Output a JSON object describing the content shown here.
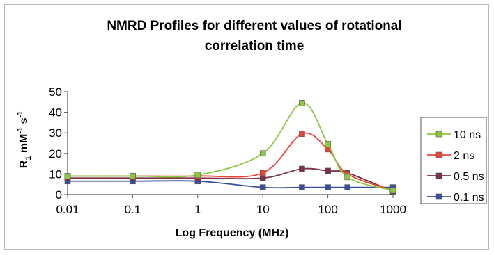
{
  "chart_data": {
    "type": "line",
    "title_lines": [
      "NMRD Profiles for different values of rotational",
      "correlation time"
    ],
    "xlabel": "Log Frequency (MHz)",
    "ylabel": {
      "base": "R",
      "sub": "1",
      "unit1": " mM",
      "sup1": "-1",
      "unit2": " s",
      "sup2": "-1"
    },
    "x_scale": "log",
    "xlim": [
      0.01,
      1000
    ],
    "ylim": [
      0,
      50
    ],
    "x_ticks": [
      0.01,
      0.1,
      1,
      10,
      100,
      1000
    ],
    "x_tick_labels": [
      "0.01",
      "0.1",
      "1",
      "10",
      "100",
      "1000"
    ],
    "y_ticks": [
      0,
      10,
      20,
      30,
      40,
      50
    ],
    "y_tick_labels": [
      "0",
      "10",
      "20",
      "30",
      "40",
      "50"
    ],
    "grid": false,
    "legend_position": "right",
    "x": [
      0.01,
      0.1,
      1,
      10,
      40,
      100,
      200,
      1000
    ],
    "series": [
      {
        "name": "10 ns",
        "color": "#8dc63f",
        "values": [
          9,
          9,
          9.5,
          20,
          44.5,
          24.5,
          8.5,
          2
        ]
      },
      {
        "name": "2 ns",
        "color": "#e8443a",
        "values": [
          9,
          9,
          9,
          10.5,
          29.5,
          22,
          10,
          2
        ]
      },
      {
        "name": "0.5 ns",
        "color": "#7b2f49",
        "values": [
          8,
          8,
          8,
          8,
          12.5,
          11.5,
          10.5,
          1.5
        ]
      },
      {
        "name": "0.1 ns",
        "color": "#3a4f9a",
        "values": [
          6.5,
          6.5,
          6.5,
          3.5,
          3.5,
          3.5,
          3.5,
          3.5
        ]
      }
    ]
  }
}
